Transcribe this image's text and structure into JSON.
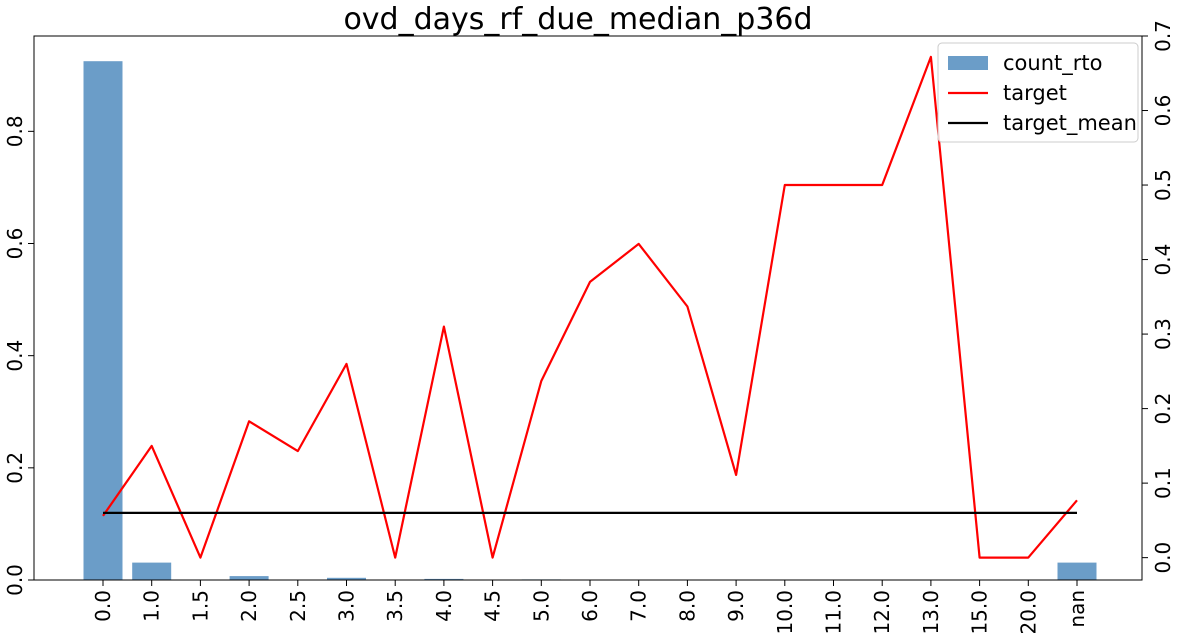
{
  "chart_data": {
    "type": "bar",
    "title": "ovd_days_rf_due_median_p36d",
    "categories": [
      "0.0",
      "1.0",
      "1.5",
      "2.0",
      "2.5",
      "3.0",
      "3.5",
      "4.0",
      "4.5",
      "5.0",
      "6.0",
      "7.0",
      "8.0",
      "9.0",
      "10.0",
      "11.0",
      "12.0",
      "13.0",
      "15.0",
      "20.0",
      "nan"
    ],
    "ylim_left": [
      0,
      0.97
    ],
    "ylim_right": [
      -0.03,
      0.7
    ],
    "yticks_left": [
      "0.0",
      "0.2",
      "0.4",
      "0.6",
      "0.8"
    ],
    "yticks_right": [
      "0.0",
      "0.1",
      "0.2",
      "0.3",
      "0.4",
      "0.5",
      "0.6",
      "0.7"
    ],
    "legend_position": "top-right",
    "grid": false,
    "series": [
      {
        "name": "count_rto",
        "kind": "bar",
        "axis": "left",
        "color": "#6b9dc8",
        "values": [
          0.925,
          0.031,
          0.0,
          0.007,
          0.0,
          0.004,
          0.0,
          0.002,
          0.0,
          0.001,
          0.0,
          0.0,
          0.0,
          0.0,
          0.0,
          0.0,
          0.0,
          0.0,
          0.0,
          0.0,
          0.031
        ]
      },
      {
        "name": "target",
        "kind": "line",
        "axis": "right",
        "color": "#ff0000",
        "values": [
          0.056,
          0.15,
          0.0,
          0.183,
          0.143,
          0.26,
          0.0,
          0.31,
          0.0,
          0.237,
          0.37,
          0.421,
          0.337,
          0.111,
          0.5,
          0.5,
          0.5,
          0.672,
          0.0,
          0.0,
          0.077
        ]
      },
      {
        "name": "target_mean",
        "kind": "line",
        "axis": "right",
        "color": "#000000",
        "values": [
          0.06,
          0.06,
          0.06,
          0.06,
          0.06,
          0.06,
          0.06,
          0.06,
          0.06,
          0.06,
          0.06,
          0.06,
          0.06,
          0.06,
          0.06,
          0.06,
          0.06,
          0.06,
          0.06,
          0.06,
          0.06
        ]
      }
    ]
  }
}
